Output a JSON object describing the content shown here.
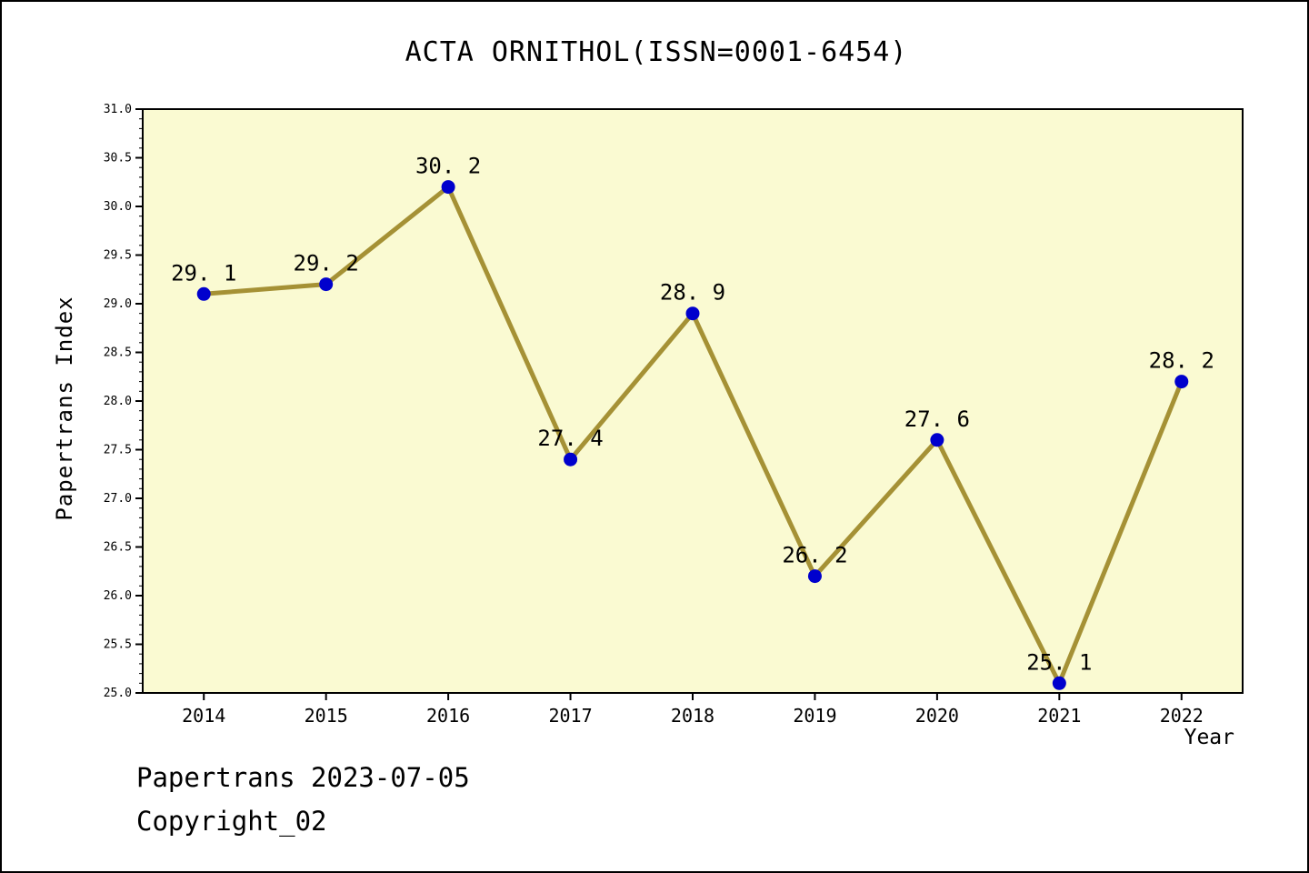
{
  "title": "ACTA ORNITHOL(ISSN=0001-6454)",
  "footer": {
    "line1": "Papertrans 2023-07-05",
    "line2": "Copyright_02"
  },
  "chart_data": {
    "type": "line",
    "title": "ACTA ORNITHOL(ISSN=0001-6454)",
    "xlabel": "Year",
    "ylabel": "Papertrans Index",
    "x": [
      2014,
      2015,
      2016,
      2017,
      2018,
      2019,
      2020,
      2021,
      2022
    ],
    "values": [
      29.1,
      29.2,
      30.2,
      27.4,
      28.9,
      26.2,
      27.6,
      25.1,
      28.2
    ],
    "ylim": [
      25.0,
      31.0
    ],
    "xlim": [
      2013.5,
      2022.5
    ],
    "ytick_step": 0.5,
    "ytick_minor_step": 0.1,
    "grid": false,
    "legend": "none",
    "colors": {
      "plot_bg": "#fafad2",
      "line": "#a59135",
      "marker": "#0000cd",
      "text": "#000000",
      "axis": "#000000"
    }
  }
}
